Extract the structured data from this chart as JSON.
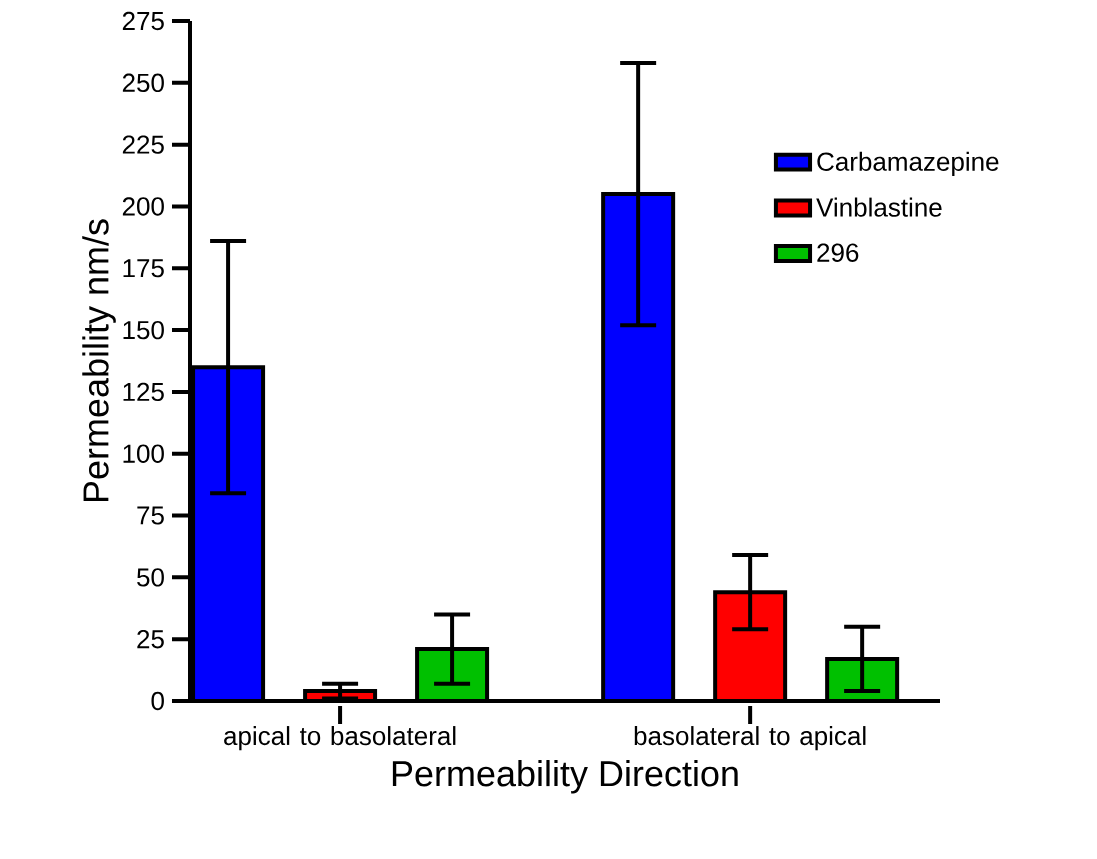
{
  "chart_data": {
    "type": "bar",
    "xlabel": "Permeability Direction",
    "ylabel": "Permeability nm/s",
    "categories": [
      "apical to basolateral",
      "basolateral to apical"
    ],
    "series": [
      {
        "name": "Carbamazepine",
        "color": "#0000ff",
        "values": [
          135,
          205
        ],
        "errors": [
          51,
          53
        ]
      },
      {
        "name": "Vinblastine",
        "color": "#ff0000",
        "values": [
          4,
          44
        ],
        "errors": [
          3,
          15
        ]
      },
      {
        "name": "296",
        "color": "#00c000",
        "values": [
          21,
          17
        ],
        "errors": [
          14,
          13
        ]
      }
    ],
    "ylim": [
      0,
      275
    ],
    "yticks": [
      0,
      25,
      50,
      75,
      100,
      125,
      150,
      175,
      200,
      225,
      250,
      275
    ],
    "grid": false,
    "legend": "right"
  }
}
